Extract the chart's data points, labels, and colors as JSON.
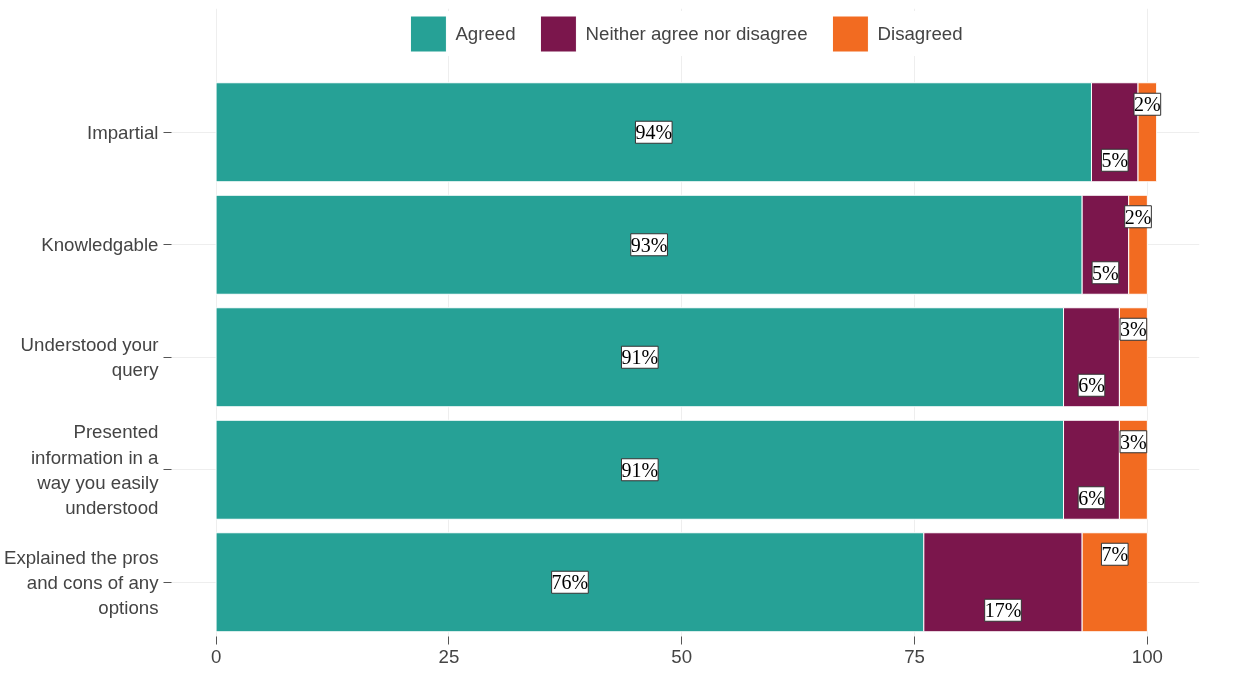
{
  "chart_data": {
    "type": "bar",
    "orientation": "horizontal",
    "stacked": true,
    "categories": [
      "Impartial",
      "Knowledgable",
      "Understood your query",
      "Presented information in a way you easily understood",
      "Explained the pros and cons of any options"
    ],
    "series": [
      {
        "name": "Agreed",
        "color": "#26a196",
        "values": [
          94,
          93,
          91,
          91,
          76
        ],
        "value_labels": [
          "94%",
          "93%",
          "91%",
          "91%",
          "76%"
        ]
      },
      {
        "name": "Neither agree nor disagree",
        "color": "#7b164c",
        "values": [
          5,
          5,
          6,
          6,
          17
        ],
        "value_labels": [
          "5%",
          "5%",
          "6%",
          "6%",
          "17%"
        ]
      },
      {
        "name": "Disagreed",
        "color": "#f26b21",
        "values": [
          2,
          2,
          3,
          3,
          7
        ],
        "value_labels": [
          "2%",
          "2%",
          "3%",
          "3%",
          "7%"
        ]
      }
    ],
    "xlim": [
      -5,
      105.6
    ],
    "xticks": [
      0,
      25,
      50,
      75,
      100
    ],
    "grid": true,
    "legend": "top"
  }
}
